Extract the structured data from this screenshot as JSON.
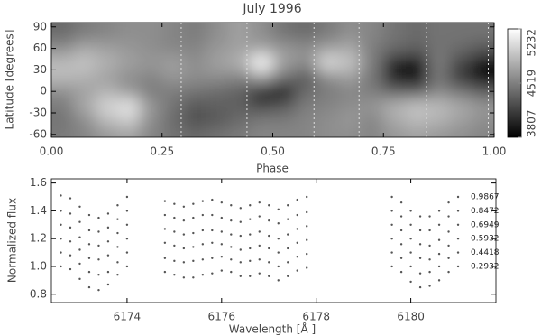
{
  "chart_data": [
    {
      "type": "heatmap",
      "title": "July 1996",
      "xlabel": "Phase",
      "ylabel": "Latitude [degrees]",
      "x": [
        0.025,
        0.075,
        0.125,
        0.175,
        0.225,
        0.275,
        0.325,
        0.375,
        0.425,
        0.475,
        0.525,
        0.575,
        0.625,
        0.675,
        0.725,
        0.775,
        0.825,
        0.875,
        0.925,
        0.975
      ],
      "y": [
        80,
        60,
        40,
        20,
        0,
        -20,
        -40,
        -60
      ],
      "z": [
        [
          4400,
          4500,
          4550,
          4600,
          4600,
          4550,
          4500,
          4600,
          4700,
          4600,
          4450,
          4400,
          4500,
          4600,
          4550,
          4450,
          4400,
          4450,
          4450,
          4450
        ],
        [
          4600,
          4750,
          4700,
          4650,
          4600,
          4550,
          4550,
          4650,
          4700,
          4700,
          4650,
          4600,
          4700,
          4750,
          4500,
          4400,
          4350,
          4450,
          4400,
          4300
        ],
        [
          4850,
          4900,
          4800,
          4700,
          4650,
          4700,
          4600,
          4700,
          4800,
          5232,
          4700,
          4600,
          5050,
          4900,
          4500,
          4000,
          3900,
          4500,
          4200,
          3900
        ],
        [
          4850,
          4800,
          4700,
          4600,
          4550,
          4650,
          4600,
          4600,
          4550,
          4700,
          4450,
          4300,
          4600,
          4700,
          4450,
          3950,
          3850,
          4450,
          4100,
          3807
        ],
        [
          4600,
          4700,
          4800,
          4650,
          4500,
          4500,
          4450,
          4400,
          4350,
          4000,
          3900,
          4400,
          4500,
          4550,
          4500,
          4350,
          4300,
          4550,
          4450,
          4300
        ],
        [
          4500,
          4750,
          5000,
          5100,
          4650,
          4450,
          4300,
          4350,
          4350,
          4200,
          4300,
          4500,
          4550,
          4600,
          4650,
          4800,
          4900,
          4850,
          4750,
          4650
        ],
        [
          4450,
          4600,
          4850,
          4950,
          4600,
          4400,
          4250,
          4300,
          4400,
          4500,
          4500,
          4550,
          4600,
          4650,
          4550,
          4750,
          4850,
          4800,
          4700,
          4600
        ],
        [
          4500,
          4550,
          4650,
          4700,
          4550,
          4450,
          4400,
          4450,
          4500,
          4550,
          4550,
          4550,
          4600,
          4600,
          4550,
          4650,
          4700,
          4650,
          4600,
          4550
        ]
      ],
      "xlim": [
        0,
        1
      ],
      "ylim": [
        -64,
        96
      ],
      "xticks": [
        {
          "value": 0,
          "label": "0.00"
        },
        {
          "value": 0.25,
          "label": "0.25"
        },
        {
          "value": 0.5,
          "label": "0.50"
        },
        {
          "value": 0.75,
          "label": "0.75"
        },
        {
          "value": 1,
          "label": "1.00"
        }
      ],
      "yticks": [
        -60,
        -30,
        0,
        30,
        60,
        90
      ],
      "zlim": [
        3807,
        5232
      ],
      "zticks": [
        3807,
        4519,
        5232
      ],
      "colormap": "gray",
      "phase_marks": [
        0.2932,
        0.4418,
        0.5932,
        0.6949,
        0.8472,
        0.9867
      ]
    },
    {
      "type": "scatter",
      "xlabel": "Wavelength [Å ]",
      "ylabel": "Normalized flux",
      "x": [
        6172.6,
        6172.8,
        6173.0,
        6173.2,
        6173.4,
        6173.6,
        6173.8,
        6174.0,
        6174.8,
        6175.0,
        6175.2,
        6175.4,
        6175.6,
        6175.8,
        6176.0,
        6176.2,
        6176.4,
        6176.6,
        6176.8,
        6177.0,
        6177.2,
        6177.4,
        6177.6,
        6177.8,
        6179.6,
        6179.8,
        6180.0,
        6180.2,
        6180.4,
        6180.6,
        6180.8,
        6181.0
      ],
      "series": [
        {
          "name": "0.2932",
          "color": "#555555",
          "values": [
            1.0,
            0.98,
            0.91,
            0.85,
            0.83,
            0.87,
            0.94,
            1.0,
            0.96,
            0.94,
            0.92,
            0.92,
            0.94,
            0.95,
            0.97,
            0.96,
            0.93,
            0.93,
            0.95,
            0.93,
            0.9,
            0.93,
            0.97,
            0.99,
            1.0,
            0.96,
            0.89,
            0.85,
            0.86,
            0.9,
            0.96,
            1.0
          ]
        },
        {
          "name": "0.4418",
          "color": "#555555",
          "values": [
            1.1,
            1.08,
            1.02,
            0.96,
            0.94,
            0.96,
            1.03,
            1.1,
            1.06,
            1.04,
            1.03,
            1.04,
            1.05,
            1.06,
            1.07,
            1.05,
            1.03,
            1.04,
            1.05,
            1.03,
            1.0,
            1.03,
            1.07,
            1.09,
            1.1,
            1.06,
            1.0,
            0.95,
            0.96,
            1.0,
            1.06,
            1.1
          ]
        },
        {
          "name": "0.5932",
          "color": "#555555",
          "values": [
            1.2,
            1.18,
            1.12,
            1.06,
            1.05,
            1.08,
            1.14,
            1.2,
            1.17,
            1.15,
            1.13,
            1.14,
            1.16,
            1.17,
            1.16,
            1.14,
            1.12,
            1.13,
            1.15,
            1.13,
            1.1,
            1.13,
            1.17,
            1.19,
            1.2,
            1.16,
            1.1,
            1.06,
            1.05,
            1.09,
            1.15,
            1.2
          ]
        },
        {
          "name": "0.6949",
          "color": "#555555",
          "values": [
            1.3,
            1.28,
            1.21,
            1.16,
            1.15,
            1.18,
            1.24,
            1.3,
            1.27,
            1.25,
            1.23,
            1.24,
            1.26,
            1.26,
            1.25,
            1.23,
            1.22,
            1.23,
            1.25,
            1.22,
            1.2,
            1.23,
            1.27,
            1.29,
            1.3,
            1.26,
            1.2,
            1.16,
            1.15,
            1.19,
            1.25,
            1.3
          ]
        },
        {
          "name": "0.8472",
          "color": "#555555",
          "values": [
            1.4,
            1.38,
            1.32,
            1.26,
            1.25,
            1.28,
            1.34,
            1.4,
            1.37,
            1.35,
            1.33,
            1.35,
            1.37,
            1.37,
            1.35,
            1.33,
            1.32,
            1.34,
            1.36,
            1.33,
            1.31,
            1.34,
            1.37,
            1.39,
            1.4,
            1.36,
            1.3,
            1.26,
            1.26,
            1.3,
            1.36,
            1.4
          ]
        },
        {
          "name": "0.9867",
          "color": "#555555",
          "values": [
            1.51,
            1.49,
            1.43,
            1.37,
            1.35,
            1.38,
            1.44,
            1.5,
            1.47,
            1.45,
            1.43,
            1.45,
            1.47,
            1.48,
            1.46,
            1.44,
            1.42,
            1.44,
            1.46,
            1.44,
            1.41,
            1.44,
            1.48,
            1.5,
            1.5,
            1.46,
            1.4,
            1.36,
            1.36,
            1.4,
            1.46,
            1.5
          ]
        }
      ],
      "xlim": [
        6172.4,
        6181.8
      ],
      "ylim": [
        0.74,
        1.63
      ],
      "xticks": [
        6174,
        6176,
        6178,
        6180
      ],
      "yticks": [
        0.8,
        {
          "value": 1,
          "label": "1.0"
        },
        1.2,
        1.4,
        1.6
      ]
    }
  ]
}
